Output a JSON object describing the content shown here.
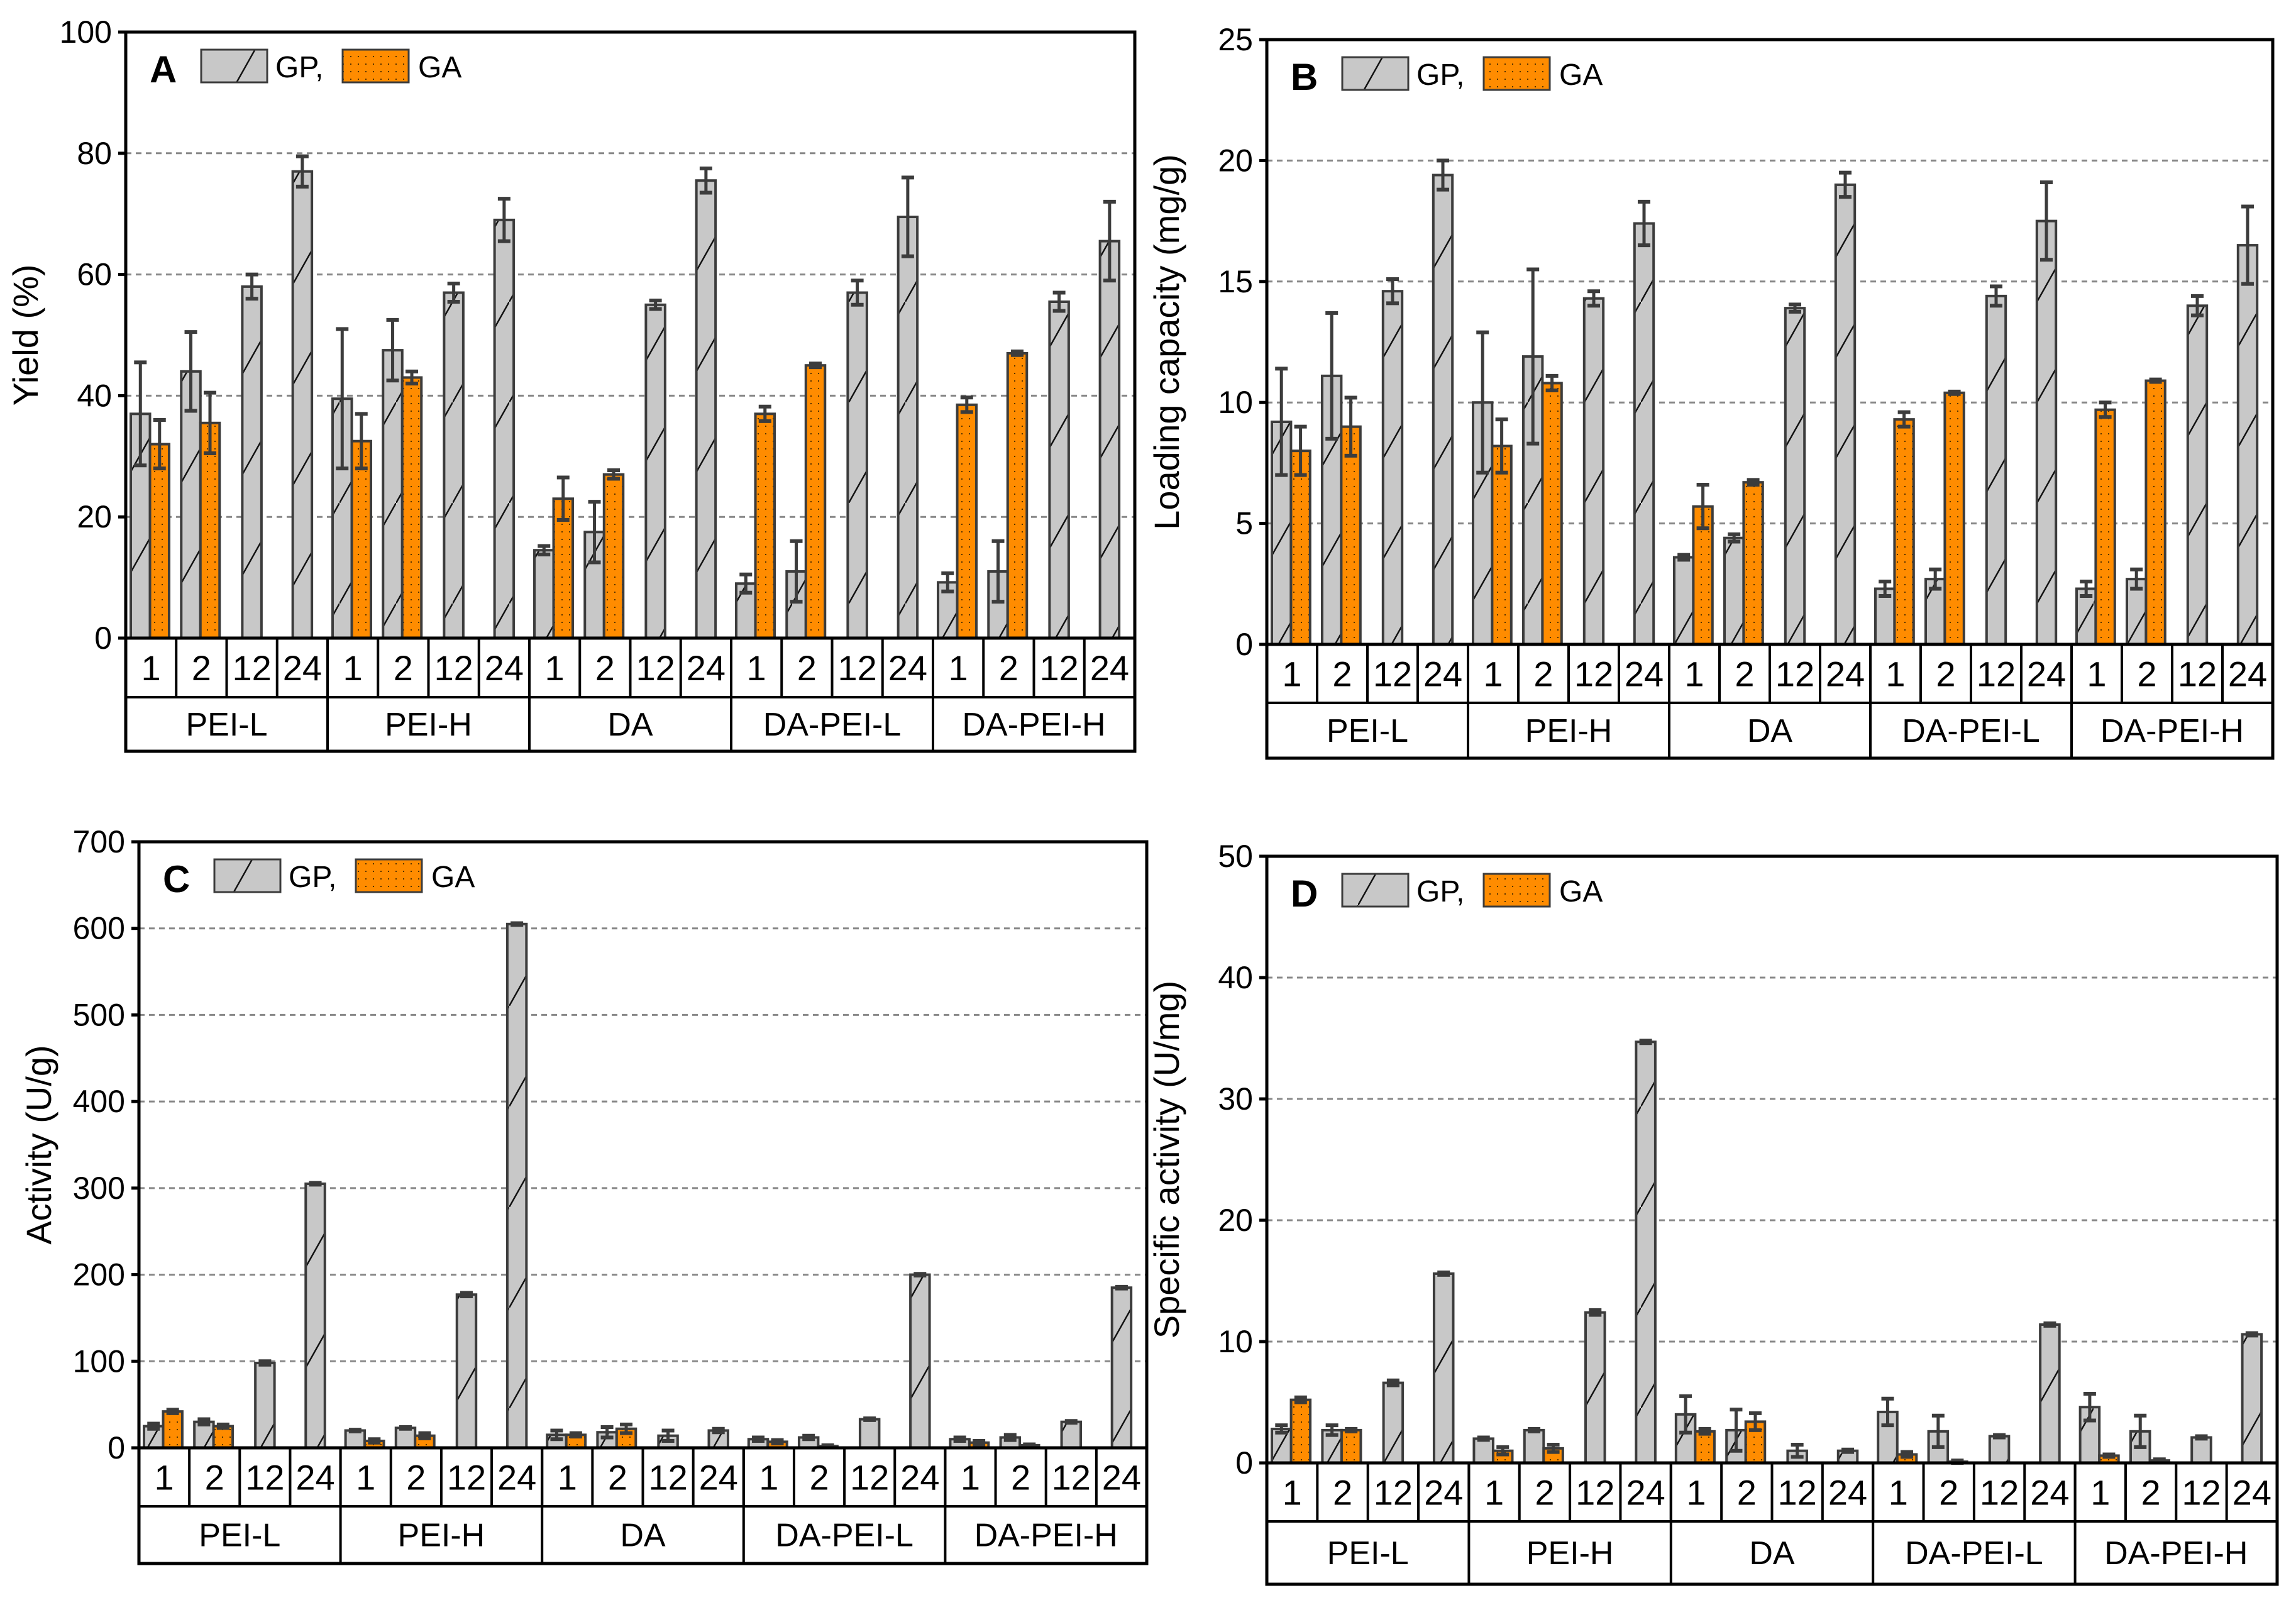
{
  "colors": {
    "gp": "#c8c8c8",
    "ga": "#ff8c00",
    "edge": "#3c3c3c",
    "grid": "#888888"
  },
  "chart_data": [
    {
      "type": "bar",
      "panel": "A",
      "ylabel": "Yield (%)",
      "ylim": [
        0,
        100
      ],
      "yticks": [
        0,
        20,
        40,
        60,
        80,
        100
      ],
      "groups": [
        "PEI-L",
        "PEI-H",
        "DA",
        "DA-PEI-L",
        "DA-PEI-H"
      ],
      "times": [
        "1",
        "2",
        "12",
        "24"
      ],
      "legend": [
        "GP,",
        "GA"
      ],
      "grid": true,
      "series": [
        {
          "name": "GP",
          "values": [
            [
              37,
              44,
              58,
              77
            ],
            [
              39.5,
              47.5,
              57,
              69
            ],
            [
              14.5,
              17.5,
              55,
              75.5
            ],
            [
              9,
              11,
              57,
              69.5
            ],
            [
              9.2,
              11,
              55.5,
              65.5
            ]
          ],
          "errors": [
            [
              8.5,
              6.5,
              2,
              2.5
            ],
            [
              11.5,
              5,
              1.5,
              3.5
            ],
            [
              0.7,
              5,
              0.7,
              2
            ],
            [
              1.5,
              5,
              2,
              6.5
            ],
            [
              1.5,
              5,
              1.5,
              6.5
            ]
          ]
        },
        {
          "name": "GA",
          "values": [
            [
              32,
              35.5,
              null,
              null
            ],
            [
              32.5,
              43,
              null,
              null
            ],
            [
              23,
              27,
              null,
              null
            ],
            [
              37,
              45,
              null,
              null
            ],
            [
              38.5,
              47,
              null,
              null
            ]
          ],
          "errors": [
            [
              4,
              5,
              null,
              null
            ],
            [
              4.5,
              1,
              null,
              null
            ],
            [
              3.5,
              0.7,
              null,
              null
            ],
            [
              1.2,
              0.3,
              null,
              null
            ],
            [
              1.2,
              0.3,
              null,
              null
            ]
          ]
        }
      ]
    },
    {
      "type": "bar",
      "panel": "B",
      "ylabel": "Loading capacity (mg/g)",
      "ylim": [
        0,
        25
      ],
      "yticks": [
        0,
        5,
        10,
        15,
        20,
        25
      ],
      "groups": [
        "PEI-L",
        "PEI-H",
        "DA",
        "DA-PEI-L",
        "DA-PEI-H"
      ],
      "times": [
        "1",
        "2",
        "12",
        "24"
      ],
      "legend": [
        "GP,",
        "GA"
      ],
      "grid": true,
      "series": [
        {
          "name": "GP",
          "values": [
            [
              9.2,
              11.1,
              14.6,
              19.4
            ],
            [
              10,
              11.9,
              14.3,
              17.4
            ],
            [
              3.6,
              4.4,
              13.9,
              19
            ],
            [
              2.3,
              2.7,
              14.4,
              17.5
            ],
            [
              2.3,
              2.7,
              14,
              16.5
            ]
          ],
          "errors": [
            [
              2.2,
              2.6,
              0.5,
              0.6
            ],
            [
              2.9,
              3.6,
              0.3,
              0.9
            ],
            [
              0.1,
              0.15,
              0.15,
              0.5
            ],
            [
              0.3,
              0.4,
              0.4,
              1.6
            ],
            [
              0.3,
              0.4,
              0.4,
              1.6
            ]
          ]
        },
        {
          "name": "GA",
          "values": [
            [
              8,
              9,
              null,
              null
            ],
            [
              8.2,
              10.8,
              null,
              null
            ],
            [
              5.7,
              6.7,
              null,
              null
            ],
            [
              9.3,
              10.4,
              null,
              null
            ],
            [
              9.7,
              10.9,
              null,
              null
            ]
          ],
          "errors": [
            [
              1,
              1.2,
              null,
              null
            ],
            [
              1.1,
              0.3,
              null,
              null
            ],
            [
              0.9,
              0.1,
              null,
              null
            ],
            [
              0.3,
              0.05,
              null,
              null
            ],
            [
              0.3,
              0.05,
              null,
              null
            ]
          ]
        }
      ]
    },
    {
      "type": "bar",
      "panel": "C",
      "ylabel": "Activity (U/g)",
      "ylim": [
        0,
        700
      ],
      "yticks": [
        0,
        100,
        200,
        300,
        400,
        500,
        600,
        700
      ],
      "groups": [
        "PEI-L",
        "PEI-H",
        "DA",
        "DA-PEI-L",
        "DA-PEI-H"
      ],
      "times": [
        "1",
        "2",
        "12",
        "24"
      ],
      "legend": [
        "GP,",
        "GA"
      ],
      "grid": true,
      "series": [
        {
          "name": "GP",
          "values": [
            [
              25,
              30,
              98,
              305
            ],
            [
              20,
              23,
              177,
              605
            ],
            [
              15,
              18,
              14,
              20
            ],
            [
              10,
              12,
              33,
              200
            ],
            [
              10,
              12,
              30,
              185
            ]
          ],
          "errors": [
            [
              3,
              3,
              2,
              1
            ],
            [
              1,
              1,
              2,
              1
            ],
            [
              5,
              6,
              6,
              2
            ],
            [
              2,
              2,
              1,
              1
            ],
            [
              2,
              3,
              1,
              1
            ]
          ]
        },
        {
          "name": "GA",
          "values": [
            [
              42,
              25,
              null,
              null
            ],
            [
              8,
              14,
              null,
              null
            ],
            [
              15,
              22,
              null,
              null
            ],
            [
              7,
              2,
              null,
              null
            ],
            [
              6,
              3,
              null,
              null
            ]
          ],
          "errors": [
            [
              2,
              2,
              null,
              null
            ],
            [
              2,
              3,
              null,
              null
            ],
            [
              2,
              5,
              null,
              null
            ],
            [
              2,
              1,
              null,
              null
            ],
            [
              2,
              1,
              null,
              null
            ]
          ]
        }
      ]
    },
    {
      "type": "bar",
      "panel": "D",
      "ylabel": "Specific activity (U/mg)",
      "ylim": [
        0,
        50
      ],
      "yticks": [
        0,
        10,
        20,
        30,
        40,
        50
      ],
      "groups": [
        "PEI-L",
        "PEI-H",
        "DA",
        "DA-PEI-L",
        "DA-PEI-H"
      ],
      "times": [
        "1",
        "2",
        "12",
        "24"
      ],
      "legend": [
        "GP,",
        "GA"
      ],
      "grid": true,
      "series": [
        {
          "name": "GP",
          "values": [
            [
              2.8,
              2.7,
              6.6,
              15.6
            ],
            [
              2,
              2.7,
              12.4,
              34.7
            ],
            [
              4,
              2.7,
              1,
              1
            ],
            [
              4.2,
              2.6,
              2.2,
              11.4
            ],
            [
              4.6,
              2.6,
              2.1,
              10.6
            ]
          ],
          "errors": [
            [
              0.3,
              0.4,
              0.2,
              0.1
            ],
            [
              0.1,
              0.1,
              0.2,
              0.1
            ],
            [
              1.5,
              1.7,
              0.5,
              0.1
            ],
            [
              1.1,
              1.3,
              0.1,
              0.1
            ],
            [
              1.1,
              1.3,
              0.1,
              0.1
            ]
          ]
        },
        {
          "name": "GA",
          "values": [
            [
              5.2,
              2.7,
              null,
              null
            ],
            [
              1,
              1.2,
              null,
              null
            ],
            [
              2.6,
              3.4,
              null,
              null
            ],
            [
              0.7,
              0.1,
              null,
              null
            ],
            [
              0.6,
              0.2,
              null,
              null
            ]
          ],
          "errors": [
            [
              0.2,
              0.1,
              null,
              null
            ],
            [
              0.3,
              0.3,
              null,
              null
            ],
            [
              0.2,
              0.7,
              null,
              null
            ],
            [
              0.2,
              0.1,
              null,
              null
            ],
            [
              0.1,
              0.1,
              null,
              null
            ]
          ]
        }
      ]
    }
  ]
}
